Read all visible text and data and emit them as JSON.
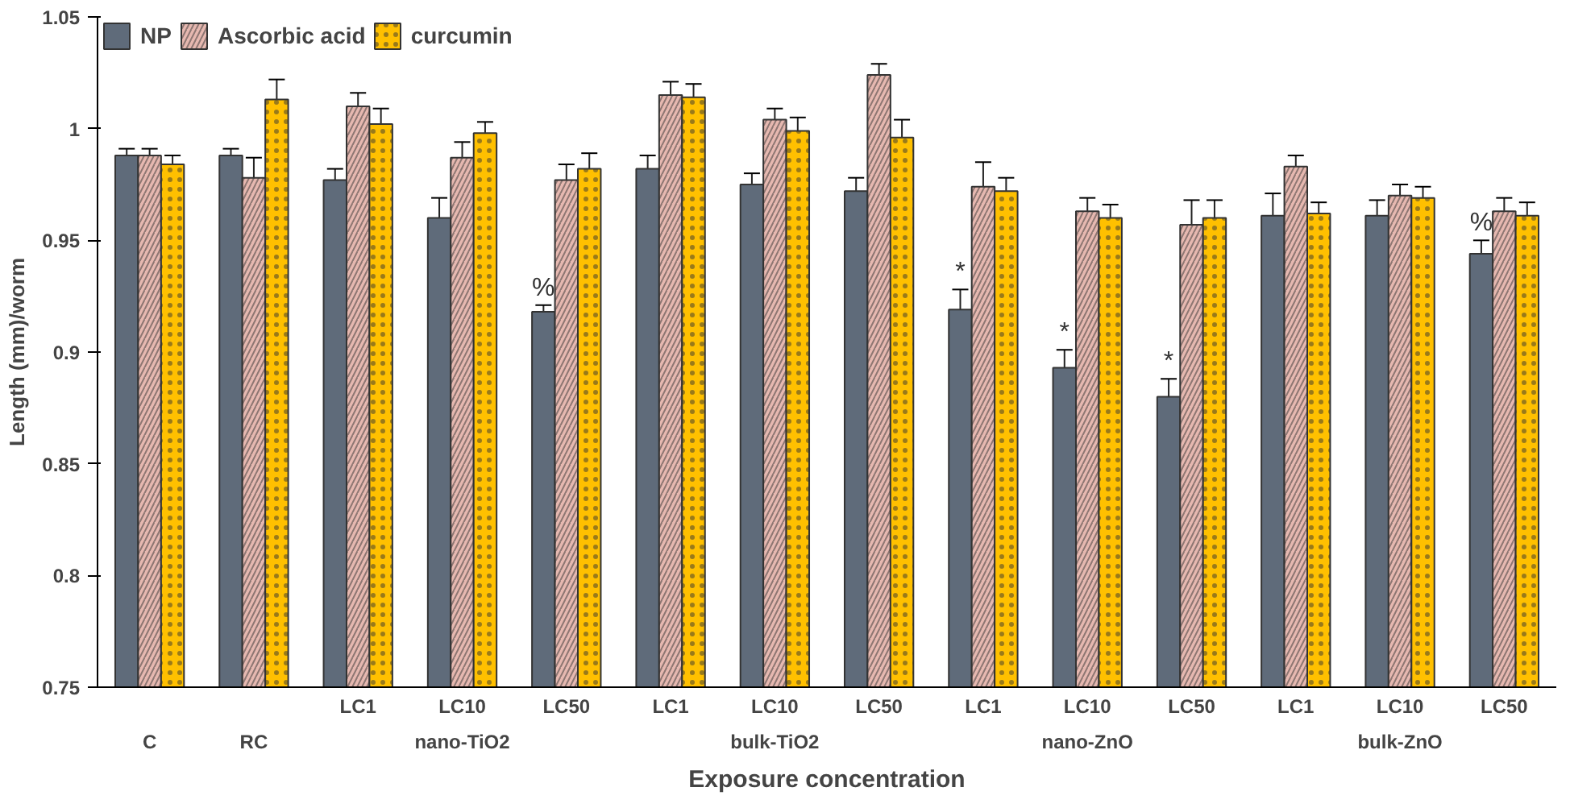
{
  "chart_data": {
    "type": "bar",
    "xlabel": "Exposure concentration",
    "ylabel": "Length (mm)/worm",
    "categories": [
      "C",
      "RC",
      "LC1",
      "LC10",
      "LC50",
      "LC1",
      "LC10",
      "LC50",
      "LC1",
      "LC10",
      "LC50",
      "LC1",
      "LC10",
      "LC50"
    ],
    "annotations": [
      "nano-TiO2",
      "bulk-TiO2",
      "nano-ZnO",
      "bulk-ZnO"
    ],
    "series": [
      {
        "name": "NP",
        "color": "#5f6b7a",
        "values": [
          0.988,
          0.988,
          0.977,
          0.96,
          0.918,
          0.982,
          0.975,
          0.972,
          0.919,
          0.893,
          0.88,
          0.961,
          0.961,
          0.944
        ],
        "errors": [
          0.003,
          0.003,
          0.005,
          0.009,
          0.003,
          0.006,
          0.005,
          0.006,
          0.009,
          0.008,
          0.008,
          0.01,
          0.007,
          0.006
        ],
        "value_labels": [
          null,
          null,
          null,
          null,
          "%",
          null,
          null,
          null,
          "*",
          "*",
          "*",
          null,
          null,
          "%"
        ]
      },
      {
        "name": "Ascorbic acid",
        "color": "#e6b8b0",
        "values": [
          0.988,
          0.978,
          1.01,
          0.987,
          0.977,
          1.015,
          1.004,
          1.024,
          0.974,
          0.963,
          0.957,
          0.983,
          0.97,
          0.963
        ],
        "errors": [
          0.003,
          0.009,
          0.006,
          0.007,
          0.007,
          0.006,
          0.005,
          0.005,
          0.011,
          0.006,
          0.011,
          0.005,
          0.005,
          0.006
        ]
      },
      {
        "name": "curcumin",
        "color": "#ffc000",
        "values": [
          0.984,
          1.013,
          1.002,
          0.998,
          0.982,
          1.014,
          0.999,
          0.996,
          0.972,
          0.96,
          0.96,
          0.962,
          0.969,
          0.961
        ],
        "errors": [
          0.004,
          0.009,
          0.007,
          0.005,
          0.007,
          0.006,
          0.006,
          0.008,
          0.006,
          0.006,
          0.008,
          0.005,
          0.005,
          0.006
        ]
      }
    ],
    "ylim": [
      0.75,
      1.05
    ],
    "yticks": [
      0.75,
      0.8,
      0.85,
      0.9,
      0.95,
      1,
      1.05
    ],
    "grid": false,
    "legend": "top left"
  }
}
